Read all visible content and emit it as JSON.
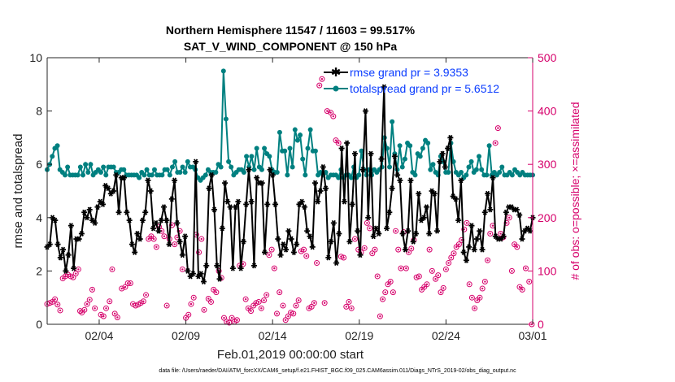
{
  "chart_data": {
    "type": "line",
    "title_line1": "Northern Hemisphere 11547 / 11603 = 99.517%",
    "title_line2": "SAT_V_WIND_COMPONENT @ 150 hPa",
    "xlabel": "Feb.01,2019 00:00:00 start",
    "ylabel_left": "rmse and totalspread",
    "ylabel_right": "# of obs: o=possible; ×=assimilated",
    "xlim": [
      0,
      28
    ],
    "ylim_left": [
      0,
      10
    ],
    "ylim_right": [
      0,
      500
    ],
    "x_ticks": [
      {
        "value": 3,
        "label": "02/04"
      },
      {
        "value": 8,
        "label": "02/09"
      },
      {
        "value": 13,
        "label": "02/14"
      },
      {
        "value": 18,
        "label": "02/19"
      },
      {
        "value": 23,
        "label": "02/24"
      },
      {
        "value": 28,
        "label": "03/01"
      }
    ],
    "y_left_ticks": [
      0,
      2,
      4,
      6,
      8,
      10
    ],
    "y_right_ticks": [
      0,
      100,
      200,
      300,
      400,
      500
    ],
    "legend": [
      "rmse grand pr = 3.9353",
      "totalspread grand pr = 5.6512"
    ],
    "colors": {
      "rmse": "#000000",
      "spread": "#008080",
      "obs": "#d6006b",
      "legend_text": "#0a3cff",
      "axis": "#262626"
    },
    "series": [
      {
        "name": "rmse",
        "values": [
          2.9,
          3.0,
          4.0,
          3.9,
          3.0,
          2.5,
          2.8,
          2.0,
          2.6,
          3.7,
          2.1,
          3.2,
          3.2,
          3.4,
          4.2,
          4.0,
          4.3,
          3.9,
          3.8,
          4.4,
          4.6,
          4.5,
          5.2,
          5.1,
          4.9,
          5.0,
          5.6,
          4.2,
          5.5,
          5.5,
          4.2,
          3.9,
          3.0,
          2.7,
          3.4,
          3.2,
          3.9,
          4.2,
          5.4,
          5.0,
          3.6,
          3.8,
          3.5,
          3.9,
          4.4,
          3.9,
          3.0,
          4.7,
          5.4,
          3.8,
          3.1,
          2.6,
          3.3,
          2.0,
          1.8,
          1.9,
          6.1,
          1.8,
          1.9,
          1.6,
          2.2,
          5.1,
          5.6,
          4.3,
          2.2,
          1.7,
          3.6,
          5.3,
          4.6,
          4.4,
          2.1,
          4.4,
          4.6,
          2.1,
          3.1,
          4.5,
          5.8,
          4.6,
          2.2,
          5.5,
          5.3,
          5.3,
          2.7,
          4.5,
          5.8,
          5.6,
          4.5,
          3.2,
          2.6,
          3.0,
          2.8,
          3.5,
          3.2,
          2.7,
          3.0,
          4.5,
          4.6,
          4.4,
          3.5,
          3.3,
          2.9,
          5.3,
          4.6,
          5.0,
          5.9,
          5.1,
          2.5,
          3.1,
          3.8,
          2.3,
          3.4,
          6.6,
          4.6,
          6.8,
          3.1,
          4.5,
          6.4,
          3.5,
          2.6,
          5.8,
          8.0,
          4.0,
          6.4,
          3.3,
          3.6,
          3.4,
          6.2,
          8.9,
          3.6,
          4.2,
          5.1,
          6.3,
          5.6,
          5.4,
          3.4,
          2.8,
          3.5,
          5.4,
          3.1,
          3.4,
          4.9,
          3.9,
          4.0,
          4.4,
          3.4,
          5.0,
          4.9,
          3.5,
          6.1,
          6.4,
          5.9,
          6.6,
          7.0,
          4.8,
          4.7,
          3.9,
          5.4,
          2.7,
          2.4,
          2.9,
          3.7,
          2.8,
          3.2,
          3.5,
          2.8,
          4.2,
          4.9,
          4.3,
          5.5,
          3.3,
          3.2,
          3.2,
          3.3,
          4.2,
          4.4,
          4.4,
          4.3,
          4.3,
          4.1,
          3.2,
          3.5,
          3.6,
          3.5,
          4.0
        ],
        "times_start": 0,
        "times_end": 28
      },
      {
        "name": "totalspread",
        "values": [
          5.8,
          6.0,
          6.3,
          6.6,
          6.7,
          5.8,
          5.7,
          5.6,
          5.9,
          5.6,
          5.6,
          5.6,
          5.6,
          5.9,
          5.6,
          6.0,
          5.7,
          6.0,
          5.6,
          5.7,
          5.8,
          5.7,
          5.9,
          5.6,
          5.9,
          5.9,
          5.9,
          5.7,
          5.7,
          5.8,
          5.8,
          5.6,
          5.6,
          5.6,
          5.6,
          5.6,
          5.5,
          5.7,
          5.6,
          5.8,
          5.6,
          5.6,
          5.8,
          5.6,
          5.6,
          5.6,
          5.8,
          5.8,
          5.6,
          5.9,
          6.1,
          5.7,
          5.7,
          5.9,
          5.7,
          6.1,
          5.9,
          5.9,
          5.8,
          5.5,
          5.4,
          5.5,
          5.6,
          5.8,
          5.7,
          5.7,
          5.7,
          6.0,
          5.9,
          9.5,
          7.7,
          6.1,
          5.9,
          5.6,
          5.7,
          5.8,
          5.8,
          5.7,
          6.3,
          5.9,
          6.3,
          5.8,
          6.6,
          5.9,
          5.8,
          6.6,
          6.4,
          6.3,
          5.8,
          5.7,
          5.7,
          7.2,
          6.5,
          6.5,
          5.6,
          6.6,
          5.9,
          7.3,
          6.9,
          7.1,
          6.2,
          5.6,
          6.6,
          7.3,
          6.5,
          6.5,
          5.6,
          5.7,
          5.6,
          5.7,
          5.5,
          5.6,
          5.6,
          5.6,
          5.5,
          5.8,
          5.5,
          5.6,
          5.6,
          5.5,
          5.9,
          5.5,
          5.6,
          6.5,
          5.8,
          5.6,
          5.8,
          5.6,
          5.8,
          5.7,
          5.8,
          5.9,
          7.0,
          6.6,
          5.9,
          7.6,
          6.4,
          5.8,
          6.7,
          5.9,
          6.2,
          6.8,
          6.7,
          5.7,
          5.6,
          6.4,
          6.3,
          6.6,
          6.9,
          6.8,
          5.8,
          6.0,
          5.7,
          5.6,
          6.3,
          6.1,
          5.7,
          5.7,
          6.8,
          6.1,
          5.7,
          5.6,
          5.7,
          5.5,
          5.6,
          5.9,
          6.1,
          5.7,
          5.8,
          6.3,
          5.8,
          5.6,
          5.6,
          6.7,
          5.6,
          5.7,
          5.6,
          5.7,
          5.9,
          5.6,
          5.6,
          5.7,
          5.6,
          5.8,
          5.7,
          5.6,
          5.7,
          5.6,
          5.6,
          5.6,
          5.6
        ],
        "times_start": 0,
        "times_end": 28
      },
      {
        "name": "obs_count",
        "points": [
          [
            0.0,
            38
          ],
          [
            0.15,
            40
          ],
          [
            0.3,
            42
          ],
          [
            0.45,
            47
          ],
          [
            0.6,
            37
          ],
          [
            0.75,
            26
          ],
          [
            0.9,
            86
          ],
          [
            1.05,
            90
          ],
          [
            1.2,
            93
          ],
          [
            1.35,
            90
          ],
          [
            1.5,
            88
          ],
          [
            1.65,
            95
          ],
          [
            1.8,
            103
          ],
          [
            1.9,
            25
          ],
          [
            2.0,
            22
          ],
          [
            2.15,
            27
          ],
          [
            2.3,
            38
          ],
          [
            2.45,
            46
          ],
          [
            2.6,
            65
          ],
          [
            2.75,
            30
          ],
          [
            3.1,
            18
          ],
          [
            3.25,
            15
          ],
          [
            3.4,
            30
          ],
          [
            3.6,
            43
          ],
          [
            3.75,
            103
          ],
          [
            3.9,
            20
          ],
          [
            4.05,
            13
          ],
          [
            4.3,
            67
          ],
          [
            4.5,
            70
          ],
          [
            4.65,
            77
          ],
          [
            4.8,
            77
          ],
          [
            4.95,
            38
          ],
          [
            5.1,
            35
          ],
          [
            5.25,
            37
          ],
          [
            5.4,
            40
          ],
          [
            5.55,
            43
          ],
          [
            5.7,
            55
          ],
          [
            5.85,
            160
          ],
          [
            6.0,
            165
          ],
          [
            6.15,
            160
          ],
          [
            6.3,
            145
          ],
          [
            6.45,
            183
          ],
          [
            6.6,
            175
          ],
          [
            6.75,
            165
          ],
          [
            6.9,
            35
          ],
          [
            7.05,
            160
          ],
          [
            7.2,
            186
          ],
          [
            7.35,
            150
          ],
          [
            7.5,
            163
          ],
          [
            7.65,
            175
          ],
          [
            7.8,
            103
          ],
          [
            8.0,
            12
          ],
          [
            8.15,
            18
          ],
          [
            8.3,
            38
          ],
          [
            8.45,
            50
          ],
          [
            8.6,
            168
          ],
          [
            8.75,
            135
          ],
          [
            8.9,
            160
          ],
          [
            9.05,
            27
          ],
          [
            9.3,
            48
          ],
          [
            9.45,
            42
          ],
          [
            9.6,
            65
          ],
          [
            9.75,
            60
          ],
          [
            9.9,
            100
          ],
          [
            10.05,
            87
          ],
          [
            10.2,
            12
          ],
          [
            10.35,
            5
          ],
          [
            10.5,
            3
          ],
          [
            10.65,
            12
          ],
          [
            10.8,
            5
          ],
          [
            10.95,
            8
          ],
          [
            11.1,
            110
          ],
          [
            11.3,
            113
          ],
          [
            11.45,
            47
          ],
          [
            11.6,
            30
          ],
          [
            11.75,
            25
          ],
          [
            11.9,
            35
          ],
          [
            12.05,
            40
          ],
          [
            12.2,
            42
          ],
          [
            12.35,
            30
          ],
          [
            12.5,
            45
          ],
          [
            12.65,
            55
          ],
          [
            12.8,
            130
          ],
          [
            12.95,
            140
          ],
          [
            13.1,
            105
          ],
          [
            13.25,
            20
          ],
          [
            13.4,
            60
          ],
          [
            13.6,
            35
          ],
          [
            13.75,
            8
          ],
          [
            13.9,
            15
          ],
          [
            14.05,
            22
          ],
          [
            14.2,
            20
          ],
          [
            14.35,
            35
          ],
          [
            14.5,
            45
          ],
          [
            14.65,
            137
          ],
          [
            14.8,
            140
          ],
          [
            14.95,
            128
          ],
          [
            15.1,
            30
          ],
          [
            15.25,
            33
          ],
          [
            15.4,
            40
          ],
          [
            15.55,
            115
          ],
          [
            15.7,
            448
          ],
          [
            15.85,
            460
          ],
          [
            16.0,
            40
          ],
          [
            16.15,
            400
          ],
          [
            16.35,
            397
          ],
          [
            16.5,
            390
          ],
          [
            16.65,
            345
          ],
          [
            16.8,
            340
          ],
          [
            16.95,
            127
          ],
          [
            17.1,
            125
          ],
          [
            17.25,
            33
          ],
          [
            17.4,
            42
          ],
          [
            17.55,
            30
          ],
          [
            17.75,
            160
          ],
          [
            17.95,
            140
          ],
          [
            18.1,
            135
          ],
          [
            18.3,
            143
          ],
          [
            18.45,
            190
          ],
          [
            18.6,
            180
          ],
          [
            18.75,
            133
          ],
          [
            18.9,
            140
          ],
          [
            19.05,
            90
          ],
          [
            19.2,
            15
          ],
          [
            19.35,
            47
          ],
          [
            19.5,
            60
          ],
          [
            19.65,
            75
          ],
          [
            19.8,
            80
          ],
          [
            19.95,
            60
          ],
          [
            20.1,
            175
          ],
          [
            20.25,
            140
          ],
          [
            20.4,
            105
          ],
          [
            20.55,
            173
          ],
          [
            20.7,
            105
          ],
          [
            20.85,
            135
          ],
          [
            21.0,
            142
          ],
          [
            21.15,
            158
          ],
          [
            21.3,
            88
          ],
          [
            21.45,
            90
          ],
          [
            21.6,
            65
          ],
          [
            21.75,
            70
          ],
          [
            21.9,
            75
          ],
          [
            22.05,
            140
          ],
          [
            22.2,
            100
          ],
          [
            22.4,
            85
          ],
          [
            22.55,
            92
          ],
          [
            22.7,
            60
          ],
          [
            22.85,
            68
          ],
          [
            23.0,
            103
          ],
          [
            23.15,
            115
          ],
          [
            23.3,
            125
          ],
          [
            23.45,
            133
          ],
          [
            23.6,
            145
          ],
          [
            23.75,
            150
          ],
          [
            23.9,
            158
          ],
          [
            24.05,
            178
          ],
          [
            24.2,
            190
          ],
          [
            24.35,
            75
          ],
          [
            24.5,
            50
          ],
          [
            24.65,
            30
          ],
          [
            24.8,
            45
          ],
          [
            24.95,
            50
          ],
          [
            25.1,
            67
          ],
          [
            25.25,
            80
          ],
          [
            25.4,
            120
          ],
          [
            25.55,
            170
          ],
          [
            25.7,
            185
          ],
          [
            25.85,
            340
          ],
          [
            26.0,
            368
          ],
          [
            26.15,
            170
          ],
          [
            26.3,
            163
          ],
          [
            26.5,
            190
          ],
          [
            26.65,
            200
          ],
          [
            26.8,
            100
          ],
          [
            26.95,
            150
          ],
          [
            27.1,
            145
          ],
          [
            27.25,
            70
          ],
          [
            27.4,
            65
          ],
          [
            27.6,
            105
          ],
          [
            27.8,
            80
          ],
          [
            27.95,
            0
          ]
        ]
      }
    ]
  },
  "footer": "data file: /Users/raeder/DAI/ATM_forcXX/CAM6_setup/f.e21.FHIST_BGC.f09_025.CAM6assim.011/Diags_NTrS_2019-02/obs_diag_output.nc"
}
